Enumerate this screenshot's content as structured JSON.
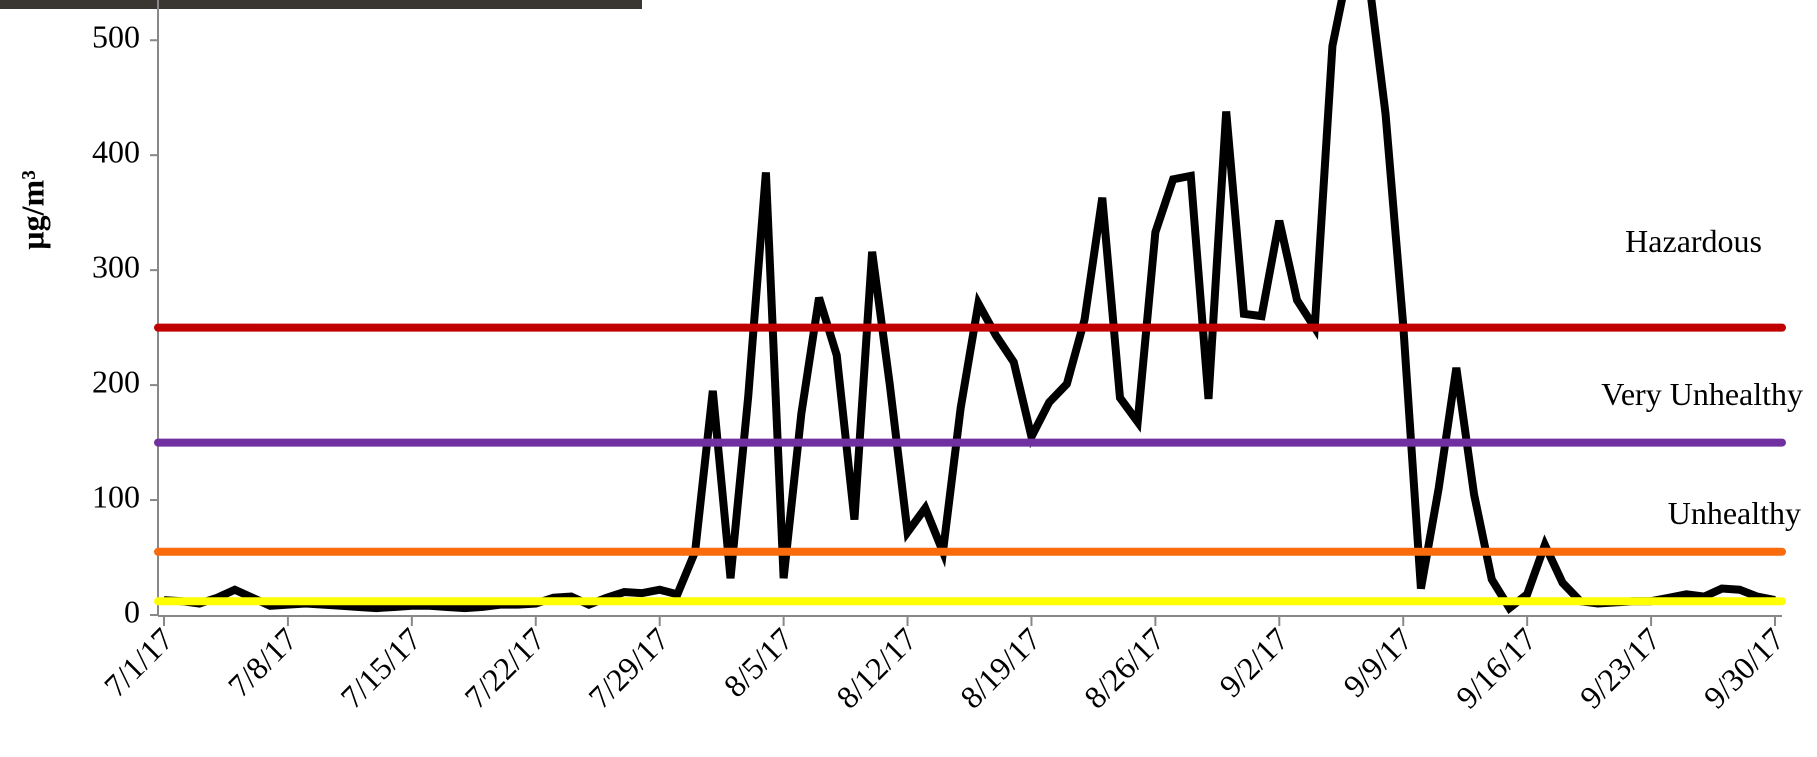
{
  "chart_data": {
    "type": "line",
    "ylabel": "µg/m³",
    "x": [
      "7/1/17",
      "7/2/17",
      "7/3/17",
      "7/4/17",
      "7/5/17",
      "7/6/17",
      "7/7/17",
      "7/8/17",
      "7/9/17",
      "7/10/17",
      "7/11/17",
      "7/12/17",
      "7/13/17",
      "7/14/17",
      "7/15/17",
      "7/16/17",
      "7/17/17",
      "7/18/17",
      "7/19/17",
      "7/20/17",
      "7/21/17",
      "7/22/17",
      "7/23/17",
      "7/24/17",
      "7/25/17",
      "7/26/17",
      "7/27/17",
      "7/28/17",
      "7/29/17",
      "7/30/17",
      "7/31/17",
      "8/1/17",
      "8/2/17",
      "8/3/17",
      "8/4/17",
      "8/5/17",
      "8/6/17",
      "8/7/17",
      "8/8/17",
      "8/9/17",
      "8/10/17",
      "8/11/17",
      "8/12/17",
      "8/13/17",
      "8/14/17",
      "8/15/17",
      "8/16/17",
      "8/17/17",
      "8/18/17",
      "8/19/17",
      "8/20/17",
      "8/21/17",
      "8/22/17",
      "8/23/17",
      "8/24/17",
      "8/25/17",
      "8/26/17",
      "8/27/17",
      "8/28/17",
      "8/29/17",
      "8/30/17",
      "8/31/17",
      "9/1/17",
      "9/2/17",
      "9/3/17",
      "9/4/17",
      "9/5/17",
      "9/6/17",
      "9/7/17",
      "9/8/17",
      "9/9/17",
      "9/10/17",
      "9/11/17",
      "9/12/17",
      "9/13/17",
      "9/14/17",
      "9/15/17",
      "9/16/17",
      "9/17/17",
      "9/18/17",
      "9/19/17",
      "9/20/17",
      "9/21/17",
      "9/22/17",
      "9/23/17",
      "9/24/17",
      "9/25/17",
      "9/26/17",
      "9/27/17",
      "9/28/17",
      "9/29/17",
      "9/30/17"
    ],
    "values": [
      13,
      12,
      10,
      15,
      22,
      15,
      8,
      9,
      10,
      9,
      8,
      7,
      6,
      7,
      8,
      8,
      7,
      6,
      7,
      9,
      9,
      10,
      15,
      16,
      9,
      15,
      20,
      19,
      22,
      18,
      55,
      195,
      32,
      190,
      385,
      32,
      175,
      276,
      226,
      83,
      316,
      200,
      72,
      93,
      55,
      180,
      271,
      243,
      220,
      155,
      185,
      201,
      257,
      363,
      189,
      168,
      333,
      379,
      382,
      188,
      438,
      262,
      260,
      343,
      274,
      250,
      495,
      570,
      560,
      436,
      252,
      23,
      110,
      215,
      105,
      31,
      6,
      18,
      61,
      28,
      12,
      10,
      11,
      12,
      12,
      15,
      18,
      16,
      23,
      22,
      16,
      13
    ],
    "color": "#000000",
    "xticks": [
      "7/1/17",
      "7/8/17",
      "7/15/17",
      "7/22/17",
      "7/29/17",
      "8/5/17",
      "8/12/17",
      "8/19/17",
      "8/26/17",
      "9/2/17",
      "9/9/17",
      "9/16/17",
      "9/23/17",
      "9/30/17"
    ],
    "ylim": [
      0,
      535
    ],
    "yticks": [
      0,
      100,
      200,
      300,
      400,
      500
    ],
    "thresholds": [
      {
        "label": "Hazardous",
        "value": 250,
        "color": "#c00000"
      },
      {
        "label": "Very Unhealthy",
        "value": 150,
        "color": "#7030a0"
      },
      {
        "label": "Unhealthy",
        "value": 55,
        "color": "#f96b0c"
      },
      {
        "value": 12,
        "color": "#ffff00"
      }
    ]
  }
}
